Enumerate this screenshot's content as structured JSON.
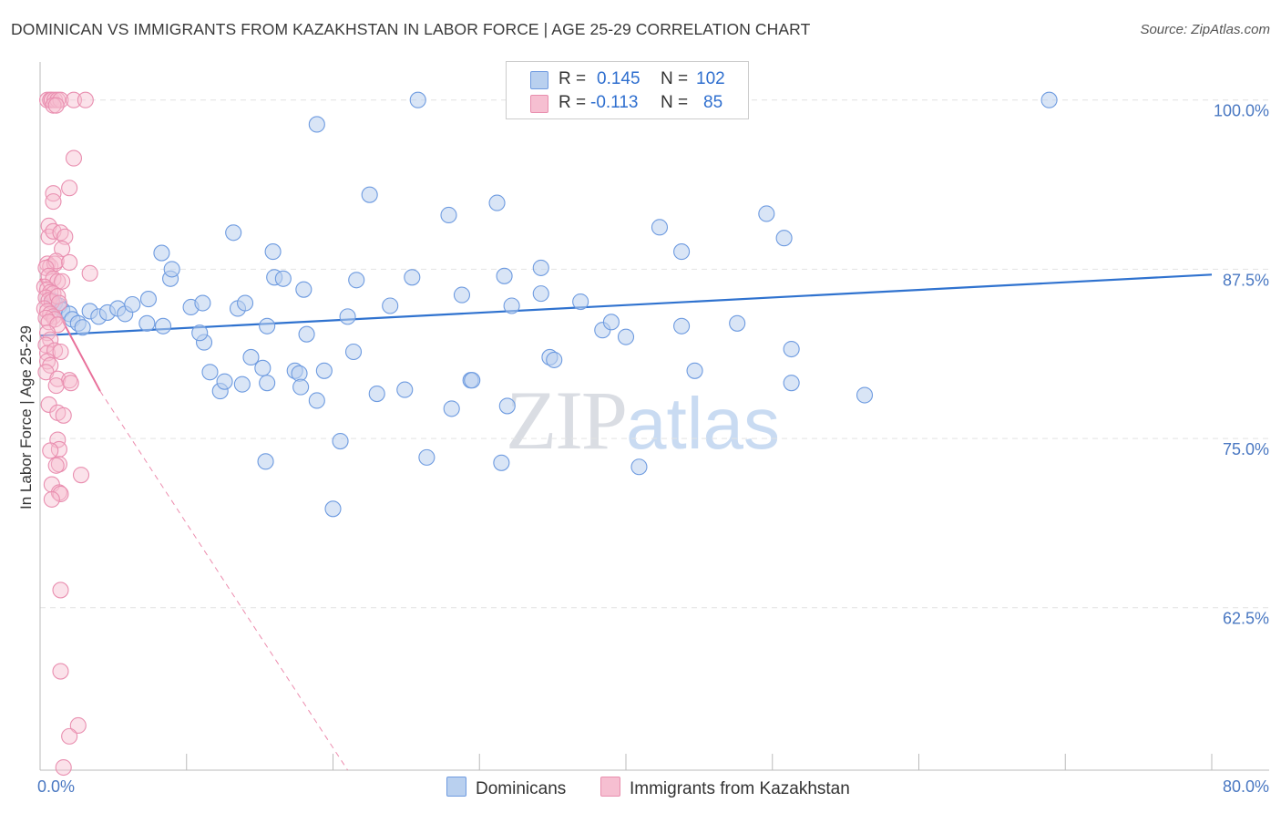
{
  "title": "DOMINICAN VS IMMIGRANTS FROM KAZAKHSTAN IN LABOR FORCE | AGE 25-29 CORRELATION CHART",
  "source": "Source: ZipAtlas.com",
  "watermark": {
    "zip": "ZIP",
    "atlas": "atlas"
  },
  "legend": {
    "r_label": "R =",
    "n_label": "N =",
    "series1": {
      "r": "0.145",
      "n": "102"
    },
    "series2": {
      "r": "-0.113",
      "n": "85"
    }
  },
  "bottom_legend": {
    "series1": "Dominicans",
    "series2": "Immigrants from Kazakhstan"
  },
  "colors": {
    "blue": "#2f72cf",
    "blue_fill": "#b9d0ef",
    "pink": "#e8709a",
    "pink_fill": "#f6bfd1"
  },
  "chart_data": {
    "type": "scatter",
    "title": "DOMINICAN VS IMMIGRANTS FROM KAZAKHSTAN IN LABOR FORCE | AGE 25-29 CORRELATION CHART",
    "xlabel": "",
    "ylabel": "In Labor Force | Age 25-29",
    "xlim": [
      0,
      80
    ],
    "ylim": [
      50.5,
      102
    ],
    "x_tick_labels": [
      "0.0%",
      "80.0%"
    ],
    "y_ticks": [
      62.5,
      75.0,
      87.5,
      100.0
    ],
    "y_tick_labels": [
      "62.5%",
      "75.0%",
      "87.5%",
      "100.0%"
    ],
    "grid": true,
    "series": [
      {
        "name": "Dominicans",
        "r": 0.145,
        "n": 102,
        "trend": {
          "x0": 0,
          "y0": 82.6,
          "x1": 80,
          "y1": 87.1
        },
        "points": [
          [
            0.8,
            85.2
          ],
          [
            1.0,
            85.0
          ],
          [
            1.3,
            84.8
          ],
          [
            1.5,
            84.5
          ],
          [
            2.0,
            84.2
          ],
          [
            2.2,
            83.8
          ],
          [
            2.6,
            83.5
          ],
          [
            2.9,
            83.2
          ],
          [
            3.4,
            84.4
          ],
          [
            4.0,
            84.0
          ],
          [
            4.6,
            84.3
          ],
          [
            5.3,
            84.6
          ],
          [
            5.8,
            84.2
          ],
          [
            6.3,
            84.9
          ],
          [
            7.4,
            85.3
          ],
          [
            7.3,
            83.5
          ],
          [
            8.4,
            83.3
          ],
          [
            8.9,
            86.8
          ],
          [
            9.0,
            87.5
          ],
          [
            8.3,
            88.7
          ],
          [
            10.3,
            84.7
          ],
          [
            11.1,
            85.0
          ],
          [
            11.2,
            82.1
          ],
          [
            10.9,
            82.8
          ],
          [
            11.6,
            79.9
          ],
          [
            12.3,
            78.5
          ],
          [
            12.6,
            79.2
          ],
          [
            13.2,
            90.2
          ],
          [
            13.5,
            84.6
          ],
          [
            14.0,
            85.0
          ],
          [
            13.8,
            79.0
          ],
          [
            14.4,
            81.0
          ],
          [
            15.2,
            80.2
          ],
          [
            15.5,
            79.1
          ],
          [
            15.4,
            73.3
          ],
          [
            15.5,
            83.3
          ],
          [
            15.9,
            88.8
          ],
          [
            16.0,
            86.9
          ],
          [
            16.6,
            86.8
          ],
          [
            17.4,
            80.0
          ],
          [
            17.7,
            79.8
          ],
          [
            17.8,
            78.8
          ],
          [
            18.0,
            86.0
          ],
          [
            18.2,
            82.7
          ],
          [
            18.9,
            77.8
          ],
          [
            19.4,
            80.0
          ],
          [
            18.9,
            98.2
          ],
          [
            20.0,
            69.8
          ],
          [
            20.5,
            74.8
          ],
          [
            21.0,
            84.0
          ],
          [
            21.4,
            81.4
          ],
          [
            21.6,
            86.7
          ],
          [
            22.5,
            93.0
          ],
          [
            23.0,
            78.3
          ],
          [
            23.9,
            84.8
          ],
          [
            24.9,
            78.6
          ],
          [
            25.4,
            86.9
          ],
          [
            25.8,
            100.0
          ],
          [
            26.4,
            73.6
          ],
          [
            27.9,
            91.5
          ],
          [
            28.1,
            77.2
          ],
          [
            28.8,
            85.6
          ],
          [
            29.4,
            79.3
          ],
          [
            29.5,
            79.3
          ],
          [
            31.2,
            92.4
          ],
          [
            31.5,
            73.2
          ],
          [
            31.7,
            87.0
          ],
          [
            31.9,
            77.4
          ],
          [
            32.2,
            84.8
          ],
          [
            34.2,
            87.6
          ],
          [
            34.2,
            85.7
          ],
          [
            34.8,
            81.0
          ],
          [
            35.1,
            80.8
          ],
          [
            36.9,
            85.1
          ],
          [
            38.4,
            83.0
          ],
          [
            39.0,
            83.6
          ],
          [
            40.0,
            82.5
          ],
          [
            40.9,
            72.9
          ],
          [
            42.3,
            90.6
          ],
          [
            43.8,
            83.3
          ],
          [
            43.8,
            88.8
          ],
          [
            44.7,
            80.0
          ],
          [
            47.6,
            83.5
          ],
          [
            49.6,
            91.6
          ],
          [
            50.8,
            89.8
          ],
          [
            51.3,
            81.6
          ],
          [
            51.3,
            79.1
          ],
          [
            56.3,
            78.2
          ],
          [
            68.9,
            100.0
          ]
        ]
      },
      {
        "name": "Immigrants from Kazakhstan",
        "r": -0.113,
        "n": 85,
        "trend_solid": {
          "x0": 0,
          "y0": 86.8,
          "x1": 4.1,
          "y1": 78.5
        },
        "trend_dashed": {
          "x0": 4.1,
          "y0": 78.5,
          "x1": 21.0,
          "y1": 50.5
        },
        "points": [
          [
            0.5,
            100.0
          ],
          [
            0.7,
            100.0
          ],
          [
            0.8,
            100.0
          ],
          [
            1.0,
            100.0
          ],
          [
            1.2,
            100.0
          ],
          [
            1.4,
            100.0
          ],
          [
            0.9,
            99.6
          ],
          [
            1.1,
            99.6
          ],
          [
            2.3,
            100.0
          ],
          [
            3.1,
            100.0
          ],
          [
            2.3,
            95.7
          ],
          [
            2.0,
            93.5
          ],
          [
            0.9,
            93.1
          ],
          [
            0.9,
            92.5
          ],
          [
            0.6,
            90.7
          ],
          [
            0.6,
            89.9
          ],
          [
            0.9,
            90.3
          ],
          [
            1.4,
            90.2
          ],
          [
            1.7,
            89.9
          ],
          [
            1.5,
            89.0
          ],
          [
            0.5,
            87.9
          ],
          [
            0.7,
            87.7
          ],
          [
            1.0,
            87.9
          ],
          [
            1.1,
            88.1
          ],
          [
            2.0,
            88.0
          ],
          [
            0.4,
            87.6
          ],
          [
            0.6,
            87.0
          ],
          [
            0.9,
            86.8
          ],
          [
            1.2,
            86.6
          ],
          [
            1.5,
            86.6
          ],
          [
            3.4,
            87.2
          ],
          [
            0.3,
            86.2
          ],
          [
            0.5,
            86.0
          ],
          [
            0.7,
            85.8
          ],
          [
            0.9,
            85.7
          ],
          [
            0.4,
            85.4
          ],
          [
            0.6,
            85.2
          ],
          [
            0.8,
            85.1
          ],
          [
            1.2,
            85.5
          ],
          [
            1.3,
            85.0
          ],
          [
            0.3,
            84.6
          ],
          [
            0.5,
            84.4
          ],
          [
            0.7,
            84.2
          ],
          [
            0.9,
            84.0
          ],
          [
            1.0,
            83.8
          ],
          [
            0.4,
            83.9
          ],
          [
            0.6,
            83.6
          ],
          [
            1.2,
            83.4
          ],
          [
            0.5,
            82.8
          ],
          [
            0.7,
            82.3
          ],
          [
            0.4,
            81.9
          ],
          [
            0.5,
            81.3
          ],
          [
            1.0,
            81.5
          ],
          [
            1.4,
            81.4
          ],
          [
            0.5,
            80.7
          ],
          [
            0.7,
            80.4
          ],
          [
            0.4,
            79.9
          ],
          [
            1.2,
            79.4
          ],
          [
            2.0,
            79.3
          ],
          [
            1.1,
            78.9
          ],
          [
            2.1,
            79.1
          ],
          [
            0.6,
            77.5
          ],
          [
            1.2,
            76.9
          ],
          [
            1.6,
            76.7
          ],
          [
            1.2,
            74.9
          ],
          [
            1.3,
            74.2
          ],
          [
            0.7,
            74.1
          ],
          [
            1.3,
            73.1
          ],
          [
            1.1,
            73.0
          ],
          [
            2.8,
            72.3
          ],
          [
            0.8,
            71.6
          ],
          [
            1.3,
            71.0
          ],
          [
            1.4,
            70.9
          ],
          [
            0.8,
            70.5
          ],
          [
            1.4,
            63.8
          ],
          [
            1.4,
            57.8
          ],
          [
            2.6,
            53.8
          ],
          [
            2.0,
            53.0
          ],
          [
            1.6,
            50.7
          ]
        ]
      }
    ]
  }
}
